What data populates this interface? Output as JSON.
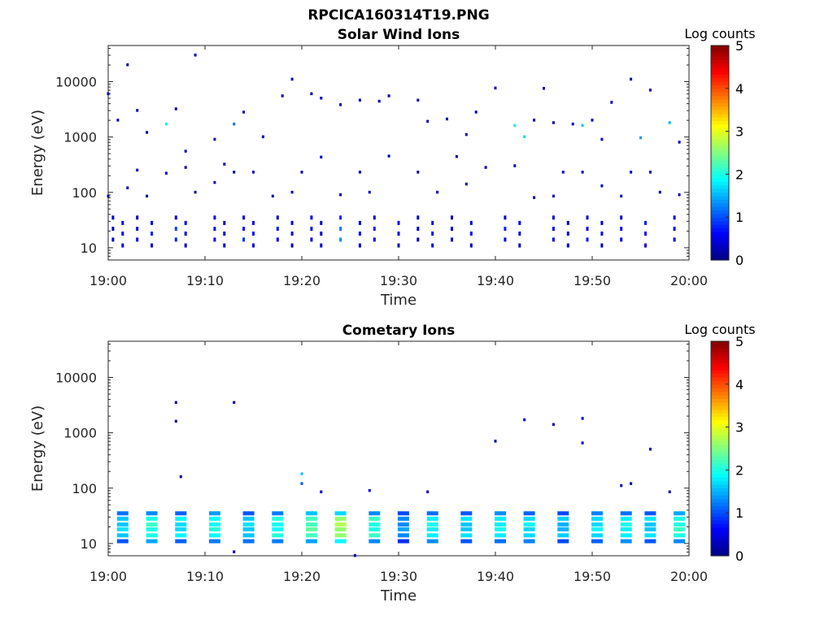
{
  "figure": {
    "filename": "RPCICA160314T19.PNG"
  },
  "chart_data": [
    {
      "type": "heatmap",
      "title": "Solar Wind Ions",
      "xlabel": "Time",
      "ylabel": "Energy (eV)",
      "xlim": [
        "19:00",
        "20:00"
      ],
      "ylim": [
        6,
        45000
      ],
      "yscale": "log",
      "x_ticks": [
        "19:00",
        "19:10",
        "19:20",
        "19:30",
        "19:40",
        "19:50",
        "20:00"
      ],
      "y_ticks": [
        "10",
        "100",
        "1000",
        "10000"
      ],
      "colorbar": {
        "label": "Log counts",
        "range": [
          0,
          5
        ],
        "ticks": [
          "0",
          "1",
          "2",
          "3",
          "4",
          "5"
        ],
        "colormap": "jet"
      },
      "cells": [
        {
          "t": "19:00",
          "e": 6000,
          "v": 0.3
        },
        {
          "t": "19:01",
          "e": 2000,
          "v": 0.4
        },
        {
          "t": "19:02",
          "e": 20000,
          "v": 0.2
        },
        {
          "t": "19:03",
          "e": 3000,
          "v": 0.3
        },
        {
          "t": "19:04",
          "e": 1200,
          "v": 0.3
        },
        {
          "t": "19:06",
          "e": 1700,
          "v": 1.8
        },
        {
          "t": "19:07",
          "e": 3200,
          "v": 0.3
        },
        {
          "t": "19:08",
          "e": 550,
          "v": 0.4
        },
        {
          "t": "19:09",
          "e": 30000,
          "v": 0.3
        },
        {
          "t": "19:11",
          "e": 900,
          "v": 0.3
        },
        {
          "t": "19:13",
          "e": 1700,
          "v": 1.2
        },
        {
          "t": "19:14",
          "e": 2800,
          "v": 0.3
        },
        {
          "t": "19:16",
          "e": 1000,
          "v": 0.3
        },
        {
          "t": "19:18",
          "e": 5500,
          "v": 0.3
        },
        {
          "t": "19:19",
          "e": 11000,
          "v": 0.3
        },
        {
          "t": "19:21",
          "e": 6000,
          "v": 0.3
        },
        {
          "t": "19:22",
          "e": 5000,
          "v": 0.3
        },
        {
          "t": "19:24",
          "e": 3800,
          "v": 0.3
        },
        {
          "t": "19:26",
          "e": 4600,
          "v": 0.3
        },
        {
          "t": "19:28",
          "e": 4400,
          "v": 0.3
        },
        {
          "t": "19:29",
          "e": 5500,
          "v": 0.3
        },
        {
          "t": "19:32",
          "e": 4600,
          "v": 0.3
        },
        {
          "t": "19:33",
          "e": 1900,
          "v": 0.3
        },
        {
          "t": "19:35",
          "e": 2100,
          "v": 0.3
        },
        {
          "t": "19:37",
          "e": 1100,
          "v": 0.3
        },
        {
          "t": "19:38",
          "e": 2800,
          "v": 0.3
        },
        {
          "t": "19:40",
          "e": 7600,
          "v": 0.3
        },
        {
          "t": "19:42",
          "e": 1600,
          "v": 1.8
        },
        {
          "t": "19:43",
          "e": 1000,
          "v": 1.7
        },
        {
          "t": "19:44",
          "e": 2000,
          "v": 0.3
        },
        {
          "t": "19:45",
          "e": 7500,
          "v": 0.3
        },
        {
          "t": "19:46",
          "e": 1800,
          "v": 0.3
        },
        {
          "t": "19:48",
          "e": 1700,
          "v": 0.3
        },
        {
          "t": "19:49",
          "e": 1600,
          "v": 1.6
        },
        {
          "t": "19:50",
          "e": 2000,
          "v": 0.3
        },
        {
          "t": "19:51",
          "e": 900,
          "v": 0.3
        },
        {
          "t": "19:52",
          "e": 4200,
          "v": 0.3
        },
        {
          "t": "19:54",
          "e": 11000,
          "v": 0.3
        },
        {
          "t": "19:55",
          "e": 960,
          "v": 1.4
        },
        {
          "t": "19:56",
          "e": 7000,
          "v": 0.3
        },
        {
          "t": "19:58",
          "e": 1800,
          "v": 1.5
        },
        {
          "t": "19:59",
          "e": 800,
          "v": 0.3
        },
        {
          "t": "19:00",
          "e": 85,
          "v": 0.3
        },
        {
          "t": "19:02",
          "e": 120,
          "v": 0.3
        },
        {
          "t": "19:03",
          "e": 250,
          "v": 0.3
        },
        {
          "t": "19:04",
          "e": 85,
          "v": 0.3
        },
        {
          "t": "19:06",
          "e": 220,
          "v": 0.3
        },
        {
          "t": "19:08",
          "e": 280,
          "v": 0.3
        },
        {
          "t": "19:09",
          "e": 100,
          "v": 0.3
        },
        {
          "t": "19:11",
          "e": 150,
          "v": 0.3
        },
        {
          "t": "19:12",
          "e": 320,
          "v": 0.3
        },
        {
          "t": "19:13",
          "e": 230,
          "v": 0.3
        },
        {
          "t": "19:15",
          "e": 230,
          "v": 0.3
        },
        {
          "t": "19:17",
          "e": 85,
          "v": 0.3
        },
        {
          "t": "19:19",
          "e": 100,
          "v": 0.3
        },
        {
          "t": "19:20",
          "e": 230,
          "v": 0.3
        },
        {
          "t": "19:22",
          "e": 430,
          "v": 0.3
        },
        {
          "t": "19:24",
          "e": 90,
          "v": 0.3
        },
        {
          "t": "19:26",
          "e": 230,
          "v": 0.3
        },
        {
          "t": "19:27",
          "e": 100,
          "v": 0.3
        },
        {
          "t": "19:29",
          "e": 450,
          "v": 0.3
        },
        {
          "t": "19:32",
          "e": 230,
          "v": 0.3
        },
        {
          "t": "19:34",
          "e": 100,
          "v": 0.3
        },
        {
          "t": "19:36",
          "e": 440,
          "v": 0.3
        },
        {
          "t": "19:37",
          "e": 140,
          "v": 0.3
        },
        {
          "t": "19:39",
          "e": 280,
          "v": 0.3
        },
        {
          "t": "19:42",
          "e": 300,
          "v": 0.3
        },
        {
          "t": "19:44",
          "e": 80,
          "v": 0.3
        },
        {
          "t": "19:46",
          "e": 85,
          "v": 0.3
        },
        {
          "t": "19:47",
          "e": 230,
          "v": 0.3
        },
        {
          "t": "19:49",
          "e": 230,
          "v": 0.3
        },
        {
          "t": "19:51",
          "e": 130,
          "v": 0.3
        },
        {
          "t": "19:53",
          "e": 85,
          "v": 0.3
        },
        {
          "t": "19:54",
          "e": 230,
          "v": 0.3
        },
        {
          "t": "19:56",
          "e": 230,
          "v": 0.3
        },
        {
          "t": "19:57",
          "e": 100,
          "v": 0.3
        },
        {
          "t": "19:59",
          "e": 90,
          "v": 0.3
        }
      ],
      "low_energy_bursts": [
        {
          "t": "19:00:30",
          "v": 0.3
        },
        {
          "t": "19:01:30",
          "v": 0.5
        },
        {
          "t": "19:03:00",
          "v": 0.4
        },
        {
          "t": "19:04:30",
          "v": 0.6
        },
        {
          "t": "19:07:00",
          "v": 0.8
        },
        {
          "t": "19:08:00",
          "v": 0.5
        },
        {
          "t": "19:11:00",
          "v": 0.6
        },
        {
          "t": "19:12:00",
          "v": 0.3
        },
        {
          "t": "19:14:00",
          "v": 0.7
        },
        {
          "t": "19:15:00",
          "v": 0.5
        },
        {
          "t": "19:17:30",
          "v": 0.6
        },
        {
          "t": "19:19:00",
          "v": 0.4
        },
        {
          "t": "19:21:00",
          "v": 0.6
        },
        {
          "t": "19:22:00",
          "v": 0.3
        },
        {
          "t": "19:24:00",
          "v": 1.2
        },
        {
          "t": "19:26:00",
          "v": 0.5
        },
        {
          "t": "19:27:30",
          "v": 0.6
        },
        {
          "t": "19:30:00",
          "v": 0.5
        },
        {
          "t": "19:32:00",
          "v": 0.4
        },
        {
          "t": "19:33:30",
          "v": 0.6
        },
        {
          "t": "19:35:30",
          "v": 0.4
        },
        {
          "t": "19:37:30",
          "v": 0.5
        },
        {
          "t": "19:41:00",
          "v": 0.6
        },
        {
          "t": "19:42:30",
          "v": 0.4
        },
        {
          "t": "19:46:00",
          "v": 0.5
        },
        {
          "t": "19:47:30",
          "v": 0.4
        },
        {
          "t": "19:49:30",
          "v": 0.6
        },
        {
          "t": "19:51:00",
          "v": 0.4
        },
        {
          "t": "19:53:00",
          "v": 0.5
        },
        {
          "t": "19:55:30",
          "v": 0.6
        },
        {
          "t": "19:58:30",
          "v": 0.5
        }
      ]
    },
    {
      "type": "heatmap",
      "title": "Cometary Ions",
      "xlabel": "Time",
      "ylabel": "Energy (eV)",
      "xlim": [
        "19:00",
        "20:00"
      ],
      "ylim": [
        6,
        45000
      ],
      "yscale": "log",
      "x_ticks": [
        "19:00",
        "19:10",
        "19:20",
        "19:30",
        "19:40",
        "19:50",
        "20:00"
      ],
      "y_ticks": [
        "10",
        "100",
        "1000",
        "10000"
      ],
      "colorbar": {
        "label": "Log counts",
        "range": [
          0,
          5
        ],
        "ticks": [
          "0",
          "1",
          "2",
          "3",
          "4",
          "5"
        ],
        "colormap": "jet"
      },
      "cells": [
        {
          "t": "19:07",
          "e": 3500,
          "v": 0.3
        },
        {
          "t": "19:07",
          "e": 1600,
          "v": 0.3
        },
        {
          "t": "19:07:30",
          "e": 160,
          "v": 0.3
        },
        {
          "t": "19:13",
          "e": 3500,
          "v": 0.3
        },
        {
          "t": "19:20",
          "e": 180,
          "v": 1.6
        },
        {
          "t": "19:20",
          "e": 120,
          "v": 1.0
        },
        {
          "t": "19:22",
          "e": 85,
          "v": 0.3
        },
        {
          "t": "19:27",
          "e": 90,
          "v": 0.6
        },
        {
          "t": "19:33",
          "e": 85,
          "v": 0.3
        },
        {
          "t": "19:40",
          "e": 700,
          "v": 0.3
        },
        {
          "t": "19:43",
          "e": 1700,
          "v": 0.3
        },
        {
          "t": "19:46",
          "e": 1400,
          "v": 0.3
        },
        {
          "t": "19:49",
          "e": 1800,
          "v": 0.3
        },
        {
          "t": "19:49",
          "e": 650,
          "v": 0.3
        },
        {
          "t": "19:53",
          "e": 110,
          "v": 0.3
        },
        {
          "t": "19:54",
          "e": 120,
          "v": 0.3
        },
        {
          "t": "19:56",
          "e": 500,
          "v": 0.3
        },
        {
          "t": "19:58",
          "e": 85,
          "v": 0.3
        },
        {
          "t": "19:13",
          "e": 7,
          "v": 0.4
        },
        {
          "t": "19:25:30",
          "e": 6,
          "v": 0.3
        }
      ],
      "low_energy_bursts": [
        {
          "t": "19:01:30",
          "v": 1.6
        },
        {
          "t": "19:04:30",
          "v": 2.0
        },
        {
          "t": "19:07:30",
          "v": 1.7
        },
        {
          "t": "19:11:00",
          "v": 1.9
        },
        {
          "t": "19:14:30",
          "v": 1.6
        },
        {
          "t": "19:17:30",
          "v": 1.9
        },
        {
          "t": "19:21:00",
          "v": 2.2
        },
        {
          "t": "19:24:00",
          "v": 2.6
        },
        {
          "t": "19:27:30",
          "v": 2.0
        },
        {
          "t": "19:30:30",
          "v": 1.3
        },
        {
          "t": "19:33:30",
          "v": 1.8
        },
        {
          "t": "19:37:00",
          "v": 1.6
        },
        {
          "t": "19:40:30",
          "v": 1.8
        },
        {
          "t": "19:43:30",
          "v": 1.7
        },
        {
          "t": "19:47:00",
          "v": 1.5
        },
        {
          "t": "19:50:30",
          "v": 1.7
        },
        {
          "t": "19:53:30",
          "v": 1.8
        },
        {
          "t": "19:56:00",
          "v": 1.6
        },
        {
          "t": "19:59:00",
          "v": 2.0
        }
      ]
    }
  ]
}
